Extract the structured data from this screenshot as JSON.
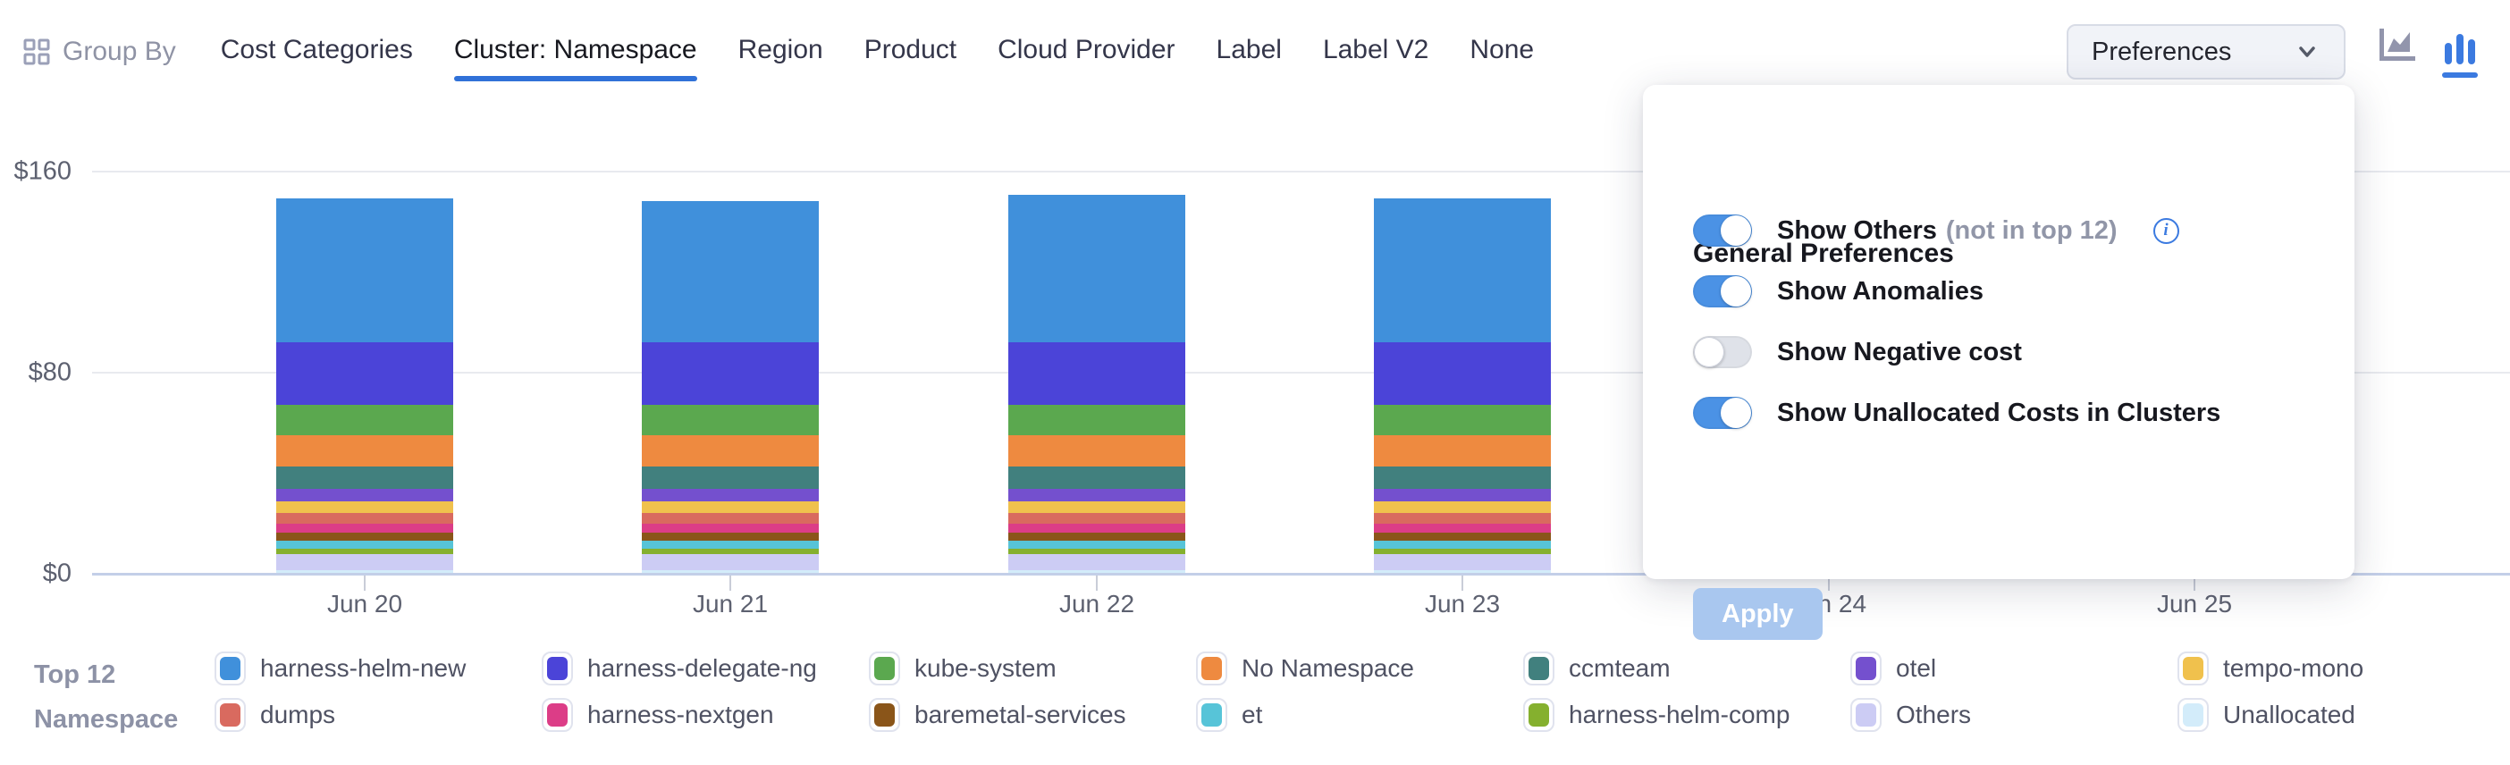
{
  "colors": {
    "accent_blue": "#3b7ae0",
    "tab_underline": "#3071d8",
    "toggle_on": "#4b92e5",
    "toggle_off": "#dfe2e9",
    "apply_disabled_bg": "#a9c7ef",
    "grid_line": "#e8eaef",
    "axis_line": "#c3cfe8",
    "inactive_icon_gray": "#9295ac"
  },
  "header": {
    "group_by_label": "Group By",
    "tabs": [
      {
        "label": "Cost Categories",
        "active": false
      },
      {
        "label": "Cluster: Namespace",
        "active": true
      },
      {
        "label": "Region",
        "active": false
      },
      {
        "label": "Product",
        "active": false
      },
      {
        "label": "Cloud Provider",
        "active": false
      },
      {
        "label": "Label",
        "active": false
      },
      {
        "label": "Label V2",
        "active": false
      },
      {
        "label": "None",
        "active": false
      }
    ],
    "preferences_button_label": "Preferences",
    "chart_type_toggle": {
      "icons": [
        "area-chart-icon",
        "bar-chart-icon"
      ],
      "active": "bar-chart-icon"
    }
  },
  "preferences_panel": {
    "title": "General Preferences",
    "toggles": [
      {
        "label": "Show Others",
        "suffix": "(not in top 12)",
        "has_info_icon": true,
        "on": true
      },
      {
        "label": "Show Anomalies",
        "suffix": "",
        "has_info_icon": false,
        "on": true
      },
      {
        "label": "Show Negative cost",
        "suffix": "",
        "has_info_icon": false,
        "on": false
      },
      {
        "label": "Show Unallocated Costs in Clusters",
        "suffix": "",
        "has_info_icon": false,
        "on": true
      }
    ],
    "apply_button_label": "Apply",
    "apply_button_enabled": false
  },
  "legend": {
    "title_line1": "Top 12",
    "title_line2": "Namespace"
  },
  "chart_data": {
    "type": "bar",
    "stacked": true,
    "title": "",
    "xlabel": "",
    "ylabel": "",
    "y_unit": "$",
    "ylim": [
      0,
      160
    ],
    "y_tick_labels": [
      "$0",
      "$80",
      "$160"
    ],
    "x_tick_labels": [
      "Jun 20",
      "Jun 21",
      "Jun 22",
      "Jun 23",
      "Jun 24",
      "Jun 25"
    ],
    "bars_visible_for": [
      "Jun 20",
      "Jun 21",
      "Jun 22",
      "Jun 23"
    ],
    "occlusion_note": "Bars for Jun 24 and Jun 25 are hidden behind the open Preferences popover",
    "grid": true,
    "legend_position": "bottom",
    "series": [
      {
        "name": "harness-helm-new",
        "color": "#4090db",
        "values": [
          57.0,
          56.0,
          58.5,
          57.0
        ]
      },
      {
        "name": "harness-delegate-ng",
        "color": "#4b44d8",
        "values": [
          25.0,
          25.0,
          25.0,
          25.0
        ]
      },
      {
        "name": "kube-system",
        "color": "#5ba84f",
        "values": [
          12.0,
          12.0,
          12.0,
          12.0
        ]
      },
      {
        "name": "No Namespace",
        "color": "#ee8a40",
        "values": [
          12.5,
          12.5,
          12.5,
          12.5
        ]
      },
      {
        "name": "ccmteam",
        "color": "#41807e",
        "values": [
          9.0,
          9.0,
          9.0,
          9.0
        ]
      },
      {
        "name": "otel",
        "color": "#7450ce",
        "values": [
          5.0,
          5.0,
          5.0,
          5.0
        ]
      },
      {
        "name": "tempo-mono",
        "color": "#f0c14d",
        "values": [
          4.5,
          4.5,
          4.5,
          4.5
        ]
      },
      {
        "name": "dumps",
        "color": "#d96a5f",
        "values": [
          4.5,
          4.5,
          4.5,
          4.5
        ]
      },
      {
        "name": "harness-nextgen",
        "color": "#dc3d87",
        "values": [
          3.5,
          3.5,
          3.5,
          3.5
        ]
      },
      {
        "name": "baremetal-services",
        "color": "#8a5519",
        "values": [
          3.2,
          3.2,
          3.2,
          3.2
        ]
      },
      {
        "name": "et",
        "color": "#57c4d8",
        "values": [
          3.2,
          3.2,
          3.2,
          3.2
        ]
      },
      {
        "name": "harness-helm-comp",
        "color": "#85b02e",
        "values": [
          2.0,
          2.0,
          2.0,
          2.0
        ]
      },
      {
        "name": "Others",
        "color": "#ccccf4",
        "values": [
          6.5,
          6.5,
          6.5,
          6.5
        ]
      },
      {
        "name": "Unallocated",
        "color": "#d3ecfa",
        "values": [
          1.0,
          1.0,
          1.0,
          1.0
        ]
      }
    ]
  }
}
